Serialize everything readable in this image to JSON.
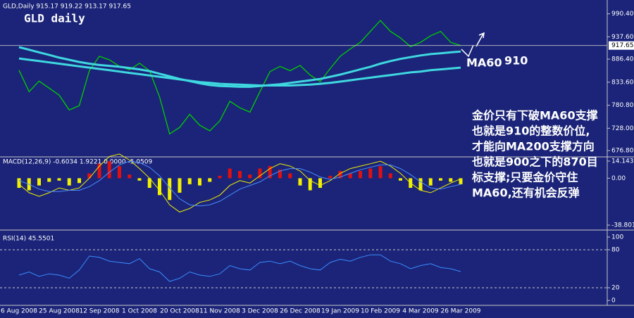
{
  "header": "GLD,Daily  915.17 919.22 913.17 917.65",
  "chart_data": [
    {
      "type": "line",
      "title": "GLD daily",
      "last_price": 917.65,
      "annotations": [
        "MA60",
        "910",
        "金价只有下破MA60支撑",
        "也就是910的整数价位,",
        "才能向MA200支撑方向",
        "也就是900之下的870目",
        "标支撑;只要金价守住",
        "MA60,还有机会反弹"
      ],
      "ylim": [
        664,
        1022
      ],
      "yticks": [
        {
          "value": 990.4,
          "label": "990.40"
        },
        {
          "value": 937.6,
          "label": "937.60"
        },
        {
          "value": 886.4,
          "label": "886.40"
        },
        {
          "value": 833.6,
          "label": "833.60"
        },
        {
          "value": 780.8,
          "label": "780.80"
        },
        {
          "value": 728,
          "label": "728.00"
        },
        {
          "value": 676.8,
          "label": "676.80"
        }
      ],
      "series": [
        {
          "color": "#00d000",
          "width": 1.3,
          "values": [
            861,
            812,
            836,
            820,
            804,
            770,
            780,
            860,
            893,
            885,
            870,
            862,
            877,
            860,
            800,
            715,
            730,
            760,
            735,
            722,
            745,
            790,
            775,
            765,
            812,
            858,
            870,
            860,
            872,
            850,
            835,
            865,
            893,
            910,
            925,
            950,
            975,
            950,
            935,
            915,
            925,
            940,
            950,
            925,
            917.65
          ]
        },
        {
          "color": "#3fd8e0",
          "width": 3,
          "values": [
            914,
            908,
            902,
            896,
            890,
            885,
            880,
            876,
            873,
            871,
            869,
            866,
            863,
            859,
            853,
            847,
            841,
            836,
            831,
            827,
            825,
            824,
            823,
            823,
            825,
            827,
            829,
            832,
            835,
            838,
            841,
            846,
            851,
            857,
            863,
            869,
            876,
            882,
            887,
            891,
            895,
            898,
            900,
            902,
            904
          ]
        },
        {
          "color": "#3fd8e0",
          "width": 3,
          "values": [
            888,
            885,
            882,
            879,
            876,
            873,
            870,
            867,
            864,
            861,
            858,
            855,
            852,
            849,
            846,
            843,
            840,
            837,
            834,
            832,
            830,
            829,
            828,
            827,
            826,
            826,
            826,
            826,
            827,
            828,
            830,
            832,
            835,
            838,
            841,
            844,
            847,
            850,
            853,
            856,
            858,
            861,
            863,
            865,
            867
          ]
        }
      ]
    },
    {
      "type": "macd",
      "title": "MACD(12,26,9) -0.6034 1.9221 0.0000 -5.0509",
      "ylim": [
        -38.8013,
        14.1437
      ],
      "yticks": [
        14.1437,
        {
          "value": 0,
          "label": "0.00"
        },
        -38.8013
      ],
      "pos_color": "#e01010",
      "neg_color": "#f0f000",
      "histogram": [
        -8,
        -10,
        -6,
        -3,
        -2,
        -6,
        -4,
        4,
        12,
        14,
        10,
        3,
        -2,
        -8,
        -14,
        -18,
        -12,
        -5,
        -6,
        -3,
        2,
        8,
        6,
        3,
        8,
        10,
        7,
        4,
        -6,
        -10,
        -8,
        2,
        6,
        4,
        6,
        8,
        10,
        4,
        -2,
        -8,
        -10,
        -6,
        -2,
        -3,
        -5
      ],
      "series": [
        {
          "color": "#f0f000",
          "values": [
            -5,
            -12,
            -15,
            -12,
            -8,
            -10,
            -8,
            0,
            10,
            18,
            20,
            15,
            8,
            0,
            -10,
            -22,
            -28,
            -25,
            -20,
            -18,
            -14,
            -6,
            -2,
            -4,
            2,
            8,
            12,
            10,
            6,
            -2,
            -6,
            -2,
            4,
            8,
            10,
            12,
            14,
            10,
            4,
            -4,
            -10,
            -12,
            -8,
            -4,
            -0.6034
          ]
        },
        {
          "color": "#4a8cff",
          "values": [
            -2,
            -5,
            -9,
            -11,
            -11,
            -10,
            -10,
            -7,
            -2,
            5,
            11,
            14,
            13,
            9,
            2,
            -8,
            -17,
            -22,
            -23,
            -22,
            -19,
            -14,
            -9,
            -6,
            -3,
            2,
            6,
            8,
            8,
            5,
            1,
            -1,
            1,
            4,
            7,
            9,
            11,
            11,
            8,
            3,
            -3,
            -8,
            -9,
            -7,
            -5.0509
          ]
        }
      ]
    },
    {
      "type": "line",
      "title": "RSI(14) 45.5501",
      "ylim": [
        0,
        100
      ],
      "yticks": [
        100,
        80,
        20,
        0
      ],
      "levels": [
        80,
        20
      ],
      "categories": [
        "6 Aug 2008",
        null,
        null,
        null,
        "25 Aug 2008",
        null,
        null,
        null,
        "12 Sep 2008",
        null,
        null,
        null,
        "1 Oct 2008",
        null,
        null,
        null,
        "20 Oct 2008",
        null,
        null,
        null,
        "11 Nov 2008",
        null,
        null,
        null,
        "3 Dec 2008",
        null,
        null,
        null,
        "26 Dec 2008",
        null,
        null,
        null,
        "19 Jan 2009",
        null,
        null,
        null,
        "10 Feb 2009",
        null,
        null,
        null,
        "4 Mar 2009",
        null,
        null,
        null,
        "26 Mar 2009"
      ],
      "series": [
        {
          "color": "#3a8cff",
          "width": 1,
          "values": [
            40,
            45,
            38,
            42,
            40,
            35,
            48,
            70,
            68,
            62,
            60,
            58,
            66,
            50,
            45,
            30,
            35,
            45,
            40,
            38,
            42,
            55,
            50,
            48,
            60,
            62,
            58,
            62,
            55,
            50,
            48,
            60,
            65,
            62,
            68,
            72,
            72,
            62,
            58,
            50,
            55,
            58,
            52,
            50,
            45.5501
          ]
        }
      ]
    }
  ]
}
